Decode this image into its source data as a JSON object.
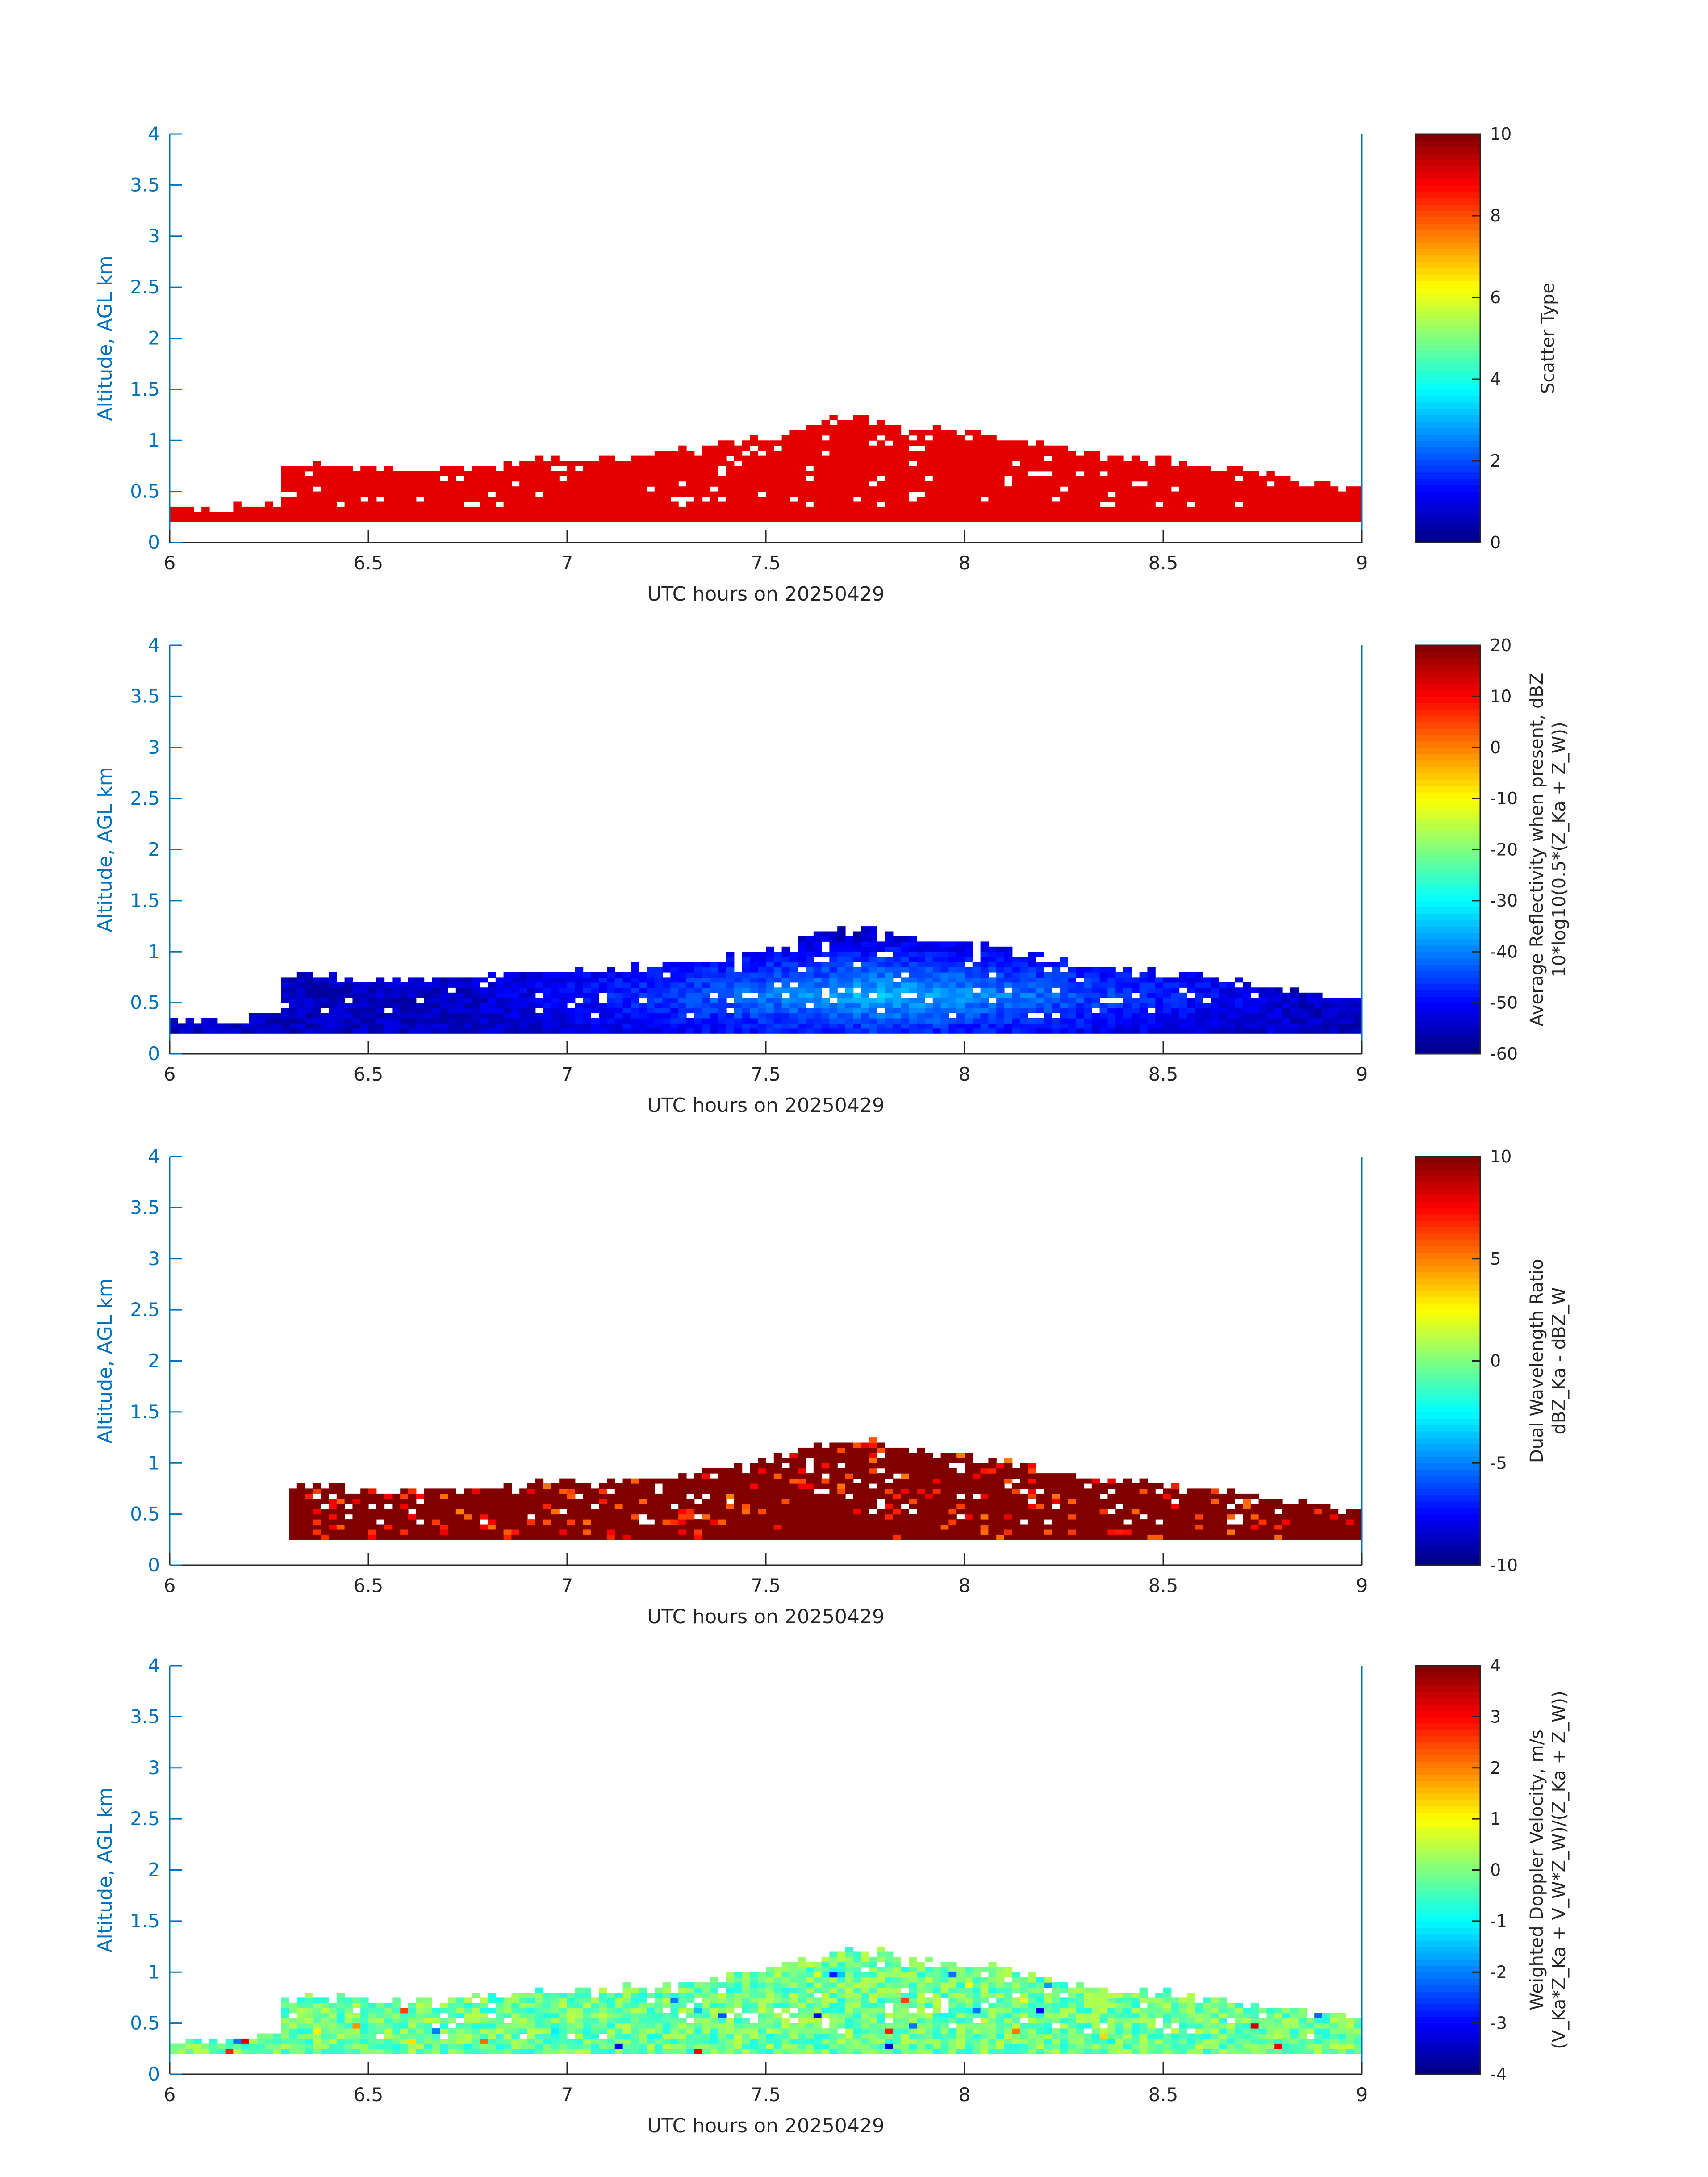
{
  "figure": {
    "date": "20250429"
  },
  "chart_data": [
    {
      "type": "heatmap",
      "xlabel": "UTC hours on 20250429",
      "ylabel": "Altitude, AGL km",
      "xlim": [
        6,
        9
      ],
      "ylim": [
        0,
        4
      ],
      "xticks": [
        "6",
        "6.5",
        "7",
        "7.5",
        "8",
        "8.5",
        "9"
      ],
      "yticks": [
        "0",
        "0.5",
        "1",
        "1.5",
        "2",
        "2.5",
        "3",
        "3.5",
        "4"
      ],
      "colorbar": {
        "label_lines": [
          "Scatter Type"
        ],
        "range": [
          0,
          10
        ],
        "ticks": [
          "0",
          "2",
          "4",
          "6",
          "8",
          "10"
        ],
        "colormap": "jet"
      },
      "field": "scatter_type",
      "dominant_value": 9,
      "bottom_km": 0.2
    },
    {
      "type": "heatmap",
      "xlabel": "UTC hours on 20250429",
      "ylabel": "Altitude, AGL km",
      "xlim": [
        6,
        9
      ],
      "ylim": [
        0,
        4
      ],
      "xticks": [
        "6",
        "6.5",
        "7",
        "7.5",
        "8",
        "8.5",
        "9"
      ],
      "yticks": [
        "0",
        "0.5",
        "1",
        "1.5",
        "2",
        "2.5",
        "3",
        "3.5",
        "4"
      ],
      "colorbar": {
        "label_lines": [
          "Average Reflectivity when present, dBZ",
          "10*log10(0.5*(Z_Ka + Z_W))"
        ],
        "range": [
          -60,
          20
        ],
        "ticks": [
          "-60",
          "-50",
          "-40",
          "-30",
          "-20",
          "-10",
          "0",
          "10",
          "20"
        ],
        "colormap": "jet"
      },
      "field": "reflectivity",
      "typical_range": [
        -55,
        -35
      ],
      "bottom_km": 0.2
    },
    {
      "type": "heatmap",
      "xlabel": "UTC hours on 20250429",
      "ylabel": "Altitude, AGL km",
      "xlim": [
        6,
        9
      ],
      "ylim": [
        0,
        4
      ],
      "xticks": [
        "6",
        "7",
        "8",
        "9"
      ],
      "yticks": [
        "0",
        "0.5",
        "1",
        "1.5",
        "2",
        "2.5",
        "3",
        "3.5",
        "4"
      ],
      "colorbar": {
        "label_lines": [
          "Dual Wavelength Ratio",
          "dBZ_Ka - dBZ_W"
        ],
        "range": [
          -10,
          10
        ],
        "ticks": [
          "-10",
          "-5",
          "0",
          "5",
          "10"
        ],
        "colormap": "jet"
      },
      "field": "dual_wavelength_ratio",
      "typical_value": 10,
      "bottom_km": 0.25
    },
    {
      "type": "heatmap",
      "xlabel": "UTC hours on 20250429",
      "ylabel": "Altitude, AGL km",
      "xlim": [
        6,
        9
      ],
      "ylim": [
        0,
        4
      ],
      "xticks": [
        "6",
        "6.5",
        "7",
        "7.5",
        "8",
        "8.5",
        "9"
      ],
      "yticks": [
        "0",
        "0.5",
        "1",
        "1.5",
        "2",
        "2.5",
        "3",
        "3.5",
        "4"
      ],
      "colorbar": {
        "label_lines": [
          "Weighted Doppler Velocity, m/s",
          "(V_Ka*Z_Ka + V_W*Z_W)/(Z_Ka + Z_W))"
        ],
        "range": [
          -4,
          4
        ],
        "ticks": [
          "-4",
          "-3",
          "-2",
          "-1",
          "0",
          "1",
          "2",
          "3",
          "4"
        ],
        "colormap": "jet"
      },
      "field": "doppler_velocity",
      "typical_range": [
        -1.2,
        0.6
      ],
      "bottom_km": 0.2
    }
  ],
  "cloud_top_profile": {
    "time_h": [
      6.0,
      6.1,
      6.2,
      6.28,
      6.35,
      6.45,
      6.55,
      6.65,
      6.75,
      6.85,
      6.95,
      7.05,
      7.15,
      7.25,
      7.35,
      7.45,
      7.55,
      7.65,
      7.72,
      7.85,
      8.0,
      8.1,
      8.2,
      8.3,
      8.4,
      8.5,
      8.6,
      8.7,
      8.8,
      8.9,
      9.0
    ],
    "top_km": [
      0.3,
      0.3,
      0.32,
      0.7,
      0.75,
      0.72,
      0.68,
      0.7,
      0.72,
      0.75,
      0.8,
      0.78,
      0.82,
      0.85,
      0.9,
      0.95,
      1.05,
      1.15,
      1.22,
      1.12,
      1.05,
      1.0,
      0.92,
      0.85,
      0.8,
      0.78,
      0.72,
      0.68,
      0.62,
      0.55,
      0.5
    ]
  }
}
